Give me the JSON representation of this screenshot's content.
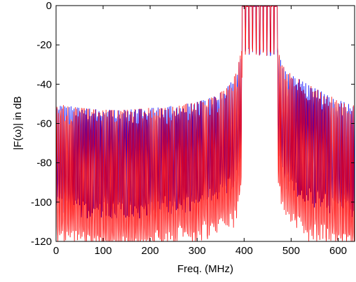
{
  "chart_data": {
    "type": "line",
    "title": "",
    "xlabel": "Freq. (MHz)",
    "ylabel": "|F(ω)| in dB",
    "xlim": [
      0,
      635
    ],
    "ylim": [
      -120,
      0
    ],
    "xticks": [
      0,
      100,
      200,
      300,
      400,
      500,
      600
    ],
    "yticks": [
      0,
      -20,
      -40,
      -60,
      -80,
      -100,
      -120
    ],
    "grid": false,
    "legend": "none",
    "series": [
      {
        "color": "#0000ff",
        "envelope": {
          "x": [
            0,
            50,
            100,
            150,
            200,
            250,
            300,
            340,
            370,
            385,
            392,
            396,
            470,
            474,
            480,
            500,
            550,
            600,
            635
          ],
          "y_peak": [
            -50,
            -52,
            -53,
            -53,
            -52,
            -51,
            -49,
            -46,
            -40,
            -33,
            -25,
            -20,
            -20,
            -24,
            -30,
            -35,
            -42,
            -48,
            -51
          ],
          "y_floor": [
            -95,
            -98,
            -100,
            -100,
            -98,
            -97,
            -95,
            -92,
            -88,
            -82,
            -75,
            -70,
            -60,
            -70,
            -80,
            -88,
            -94,
            -98,
            -100
          ]
        },
        "passband": {
          "x_start": 396,
          "x_end": 472,
          "level": 0,
          "teeth": 10
        }
      },
      {
        "color": "#ff0000",
        "envelope": {
          "x": [
            0,
            50,
            100,
            150,
            200,
            250,
            300,
            340,
            370,
            385,
            392,
            396,
            470,
            474,
            480,
            500,
            550,
            600,
            635
          ],
          "y_peak": [
            -50,
            -52,
            -53,
            -53,
            -52,
            -51,
            -49,
            -46,
            -40,
            -33,
            -25,
            -20,
            -20,
            -24,
            -30,
            -35,
            -42,
            -48,
            -51
          ],
          "y_floor": [
            -112,
            -115,
            -117,
            -117,
            -115,
            -113,
            -112,
            -110,
            -106,
            -100,
            -92,
            -85,
            -80,
            -85,
            -95,
            -105,
            -112,
            -115,
            -117
          ]
        },
        "passband": {
          "x_start": 396,
          "x_end": 472,
          "level": 0,
          "teeth": 10
        }
      }
    ]
  }
}
